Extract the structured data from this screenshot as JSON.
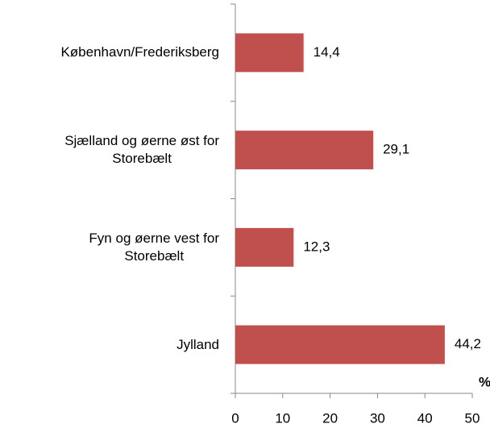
{
  "chart_data": {
    "type": "barh",
    "categories": [
      "København/Frederiksberg",
      "Sjælland og øerne øst for\nStorebælt",
      "Fyn og øerne vest for\nStorebælt",
      "Jylland"
    ],
    "values": [
      14.4,
      29.1,
      12.3,
      44.2
    ],
    "value_labels": [
      "14,4",
      "29,1",
      "12,3",
      "44,2"
    ],
    "color": "#c0504d",
    "xlim": [
      0,
      50
    ],
    "xticks": [
      0,
      10,
      20,
      30,
      40,
      50
    ],
    "xlabel": "%"
  }
}
